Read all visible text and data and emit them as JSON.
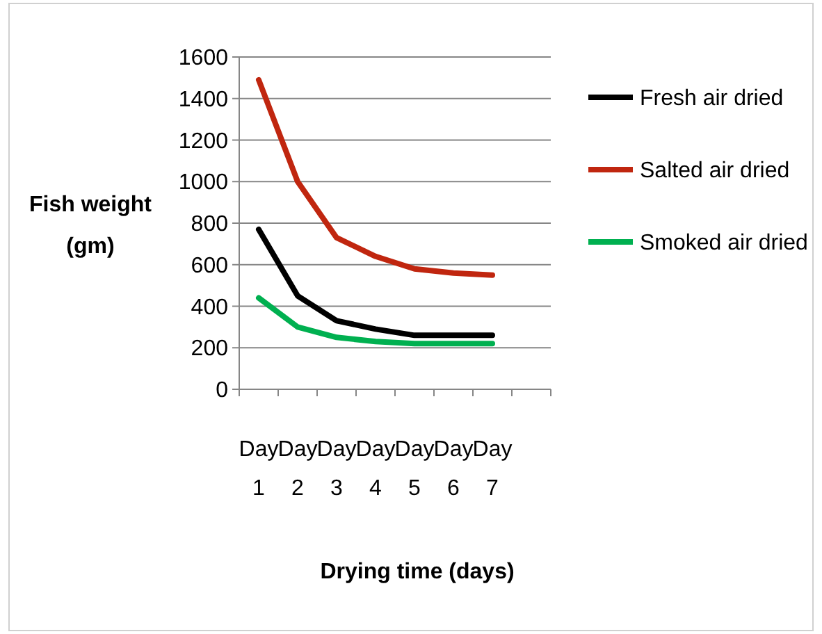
{
  "chart_data": {
    "type": "line",
    "xlabel": "Drying time (days)",
    "ylabel": "Fish weight (gm)",
    "categories": [
      "Day 1",
      "Day 2",
      "Day 3",
      "Day 4",
      "Day 5",
      "Day 6",
      "Day 7",
      null
    ],
    "series": [
      {
        "name": "Fresh air dried",
        "color": "#000000",
        "values": [
          770,
          450,
          330,
          290,
          260,
          260,
          260,
          null
        ]
      },
      {
        "name": "Salted air dried",
        "color": "#c0260f",
        "values": [
          1490,
          1000,
          730,
          640,
          580,
          560,
          550,
          null
        ]
      },
      {
        "name": "Smoked air dried",
        "color": "#00b050",
        "values": [
          440,
          300,
          250,
          230,
          220,
          220,
          220,
          null
        ]
      }
    ],
    "ylim": [
      0,
      1600
    ],
    "yticks": [
      0,
      200,
      400,
      600,
      800,
      1000,
      1200,
      1400,
      1600
    ],
    "grid": "y",
    "legend": "right",
    "marker": "none",
    "line_style": "solid"
  }
}
